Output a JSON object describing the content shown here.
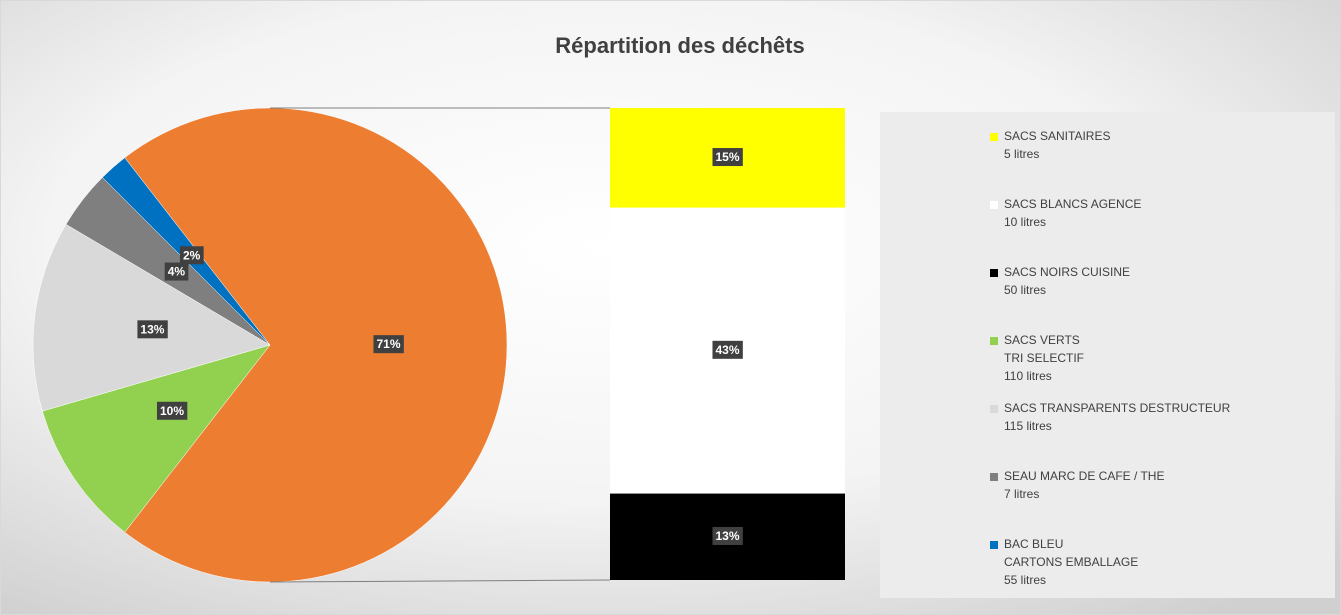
{
  "chart_data": {
    "type": "pie",
    "title": "Répartition des déchêts",
    "pie": {
      "values": [
        71,
        10,
        13,
        4,
        2
      ],
      "value_labels": [
        "71%",
        "10%",
        "13%",
        "4%",
        "2%"
      ],
      "colors": [
        "#ed7d31",
        "#92d050",
        "#d9d9d9",
        "#7f7f7f",
        "#0070c0"
      ],
      "names": [
        null,
        [
          "SACS VERTS",
          "TRI SELECTIF",
          "110 litres"
        ],
        [
          "SACS TRANSPARENTS DESTRUCTEUR",
          "115 litres"
        ],
        [
          "SEAU MARC DE CAFE / THE",
          "7 litres"
        ],
        [
          "BAC BLEU",
          "CARTONS EMBALLAGE",
          "55 litres"
        ]
      ]
    },
    "bar": {
      "values": [
        15,
        43,
        13
      ],
      "value_labels": [
        "15%",
        "43%",
        "13%"
      ],
      "colors": [
        "#ffff00",
        "#ffffff",
        "#000000"
      ],
      "names": [
        [
          "SACS SANITAIRES",
          "5 litres"
        ],
        [
          "SACS BLANCS AGENCE",
          "10 litres"
        ],
        [
          "SACS NOIRS CUISINE",
          "50 litres"
        ]
      ]
    }
  }
}
